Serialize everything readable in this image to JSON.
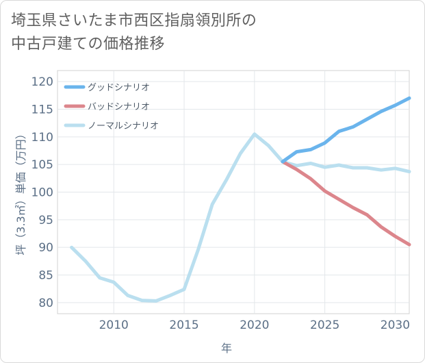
{
  "title": [
    "埼玉県さいたま市西区指扇領別所の",
    "中古戸建ての価格推移"
  ],
  "chart_data": {
    "type": "line",
    "title": "埼玉県さいたま市西区指扇領別所の中古戸建ての価格推移",
    "xlabel": "年",
    "ylabel": "坪（3.3㎡）単価（万円）",
    "xlim": [
      2006,
      2031
    ],
    "ylim": [
      78,
      122
    ],
    "x_ticks": [
      2010,
      2015,
      2020,
      2025,
      2030
    ],
    "y_ticks": [
      80,
      85,
      90,
      95,
      100,
      105,
      110,
      115,
      120
    ],
    "grid": true,
    "legend_position": "top-left",
    "series": [
      {
        "name": "グッドシナリオ",
        "color": "#6ab4ec",
        "x": [
          2022,
          2023,
          2024,
          2025,
          2026,
          2027,
          2028,
          2029,
          2030,
          2031
        ],
        "values": [
          105.5,
          107.3,
          107.7,
          108.9,
          111.0,
          111.8,
          113.2,
          114.6,
          115.7,
          117.0
        ]
      },
      {
        "name": "バッドシナリオ",
        "color": "#dc868c",
        "x": [
          2022,
          2023,
          2024,
          2025,
          2026,
          2027,
          2028,
          2029,
          2030,
          2031
        ],
        "values": [
          105.5,
          104.1,
          102.4,
          100.2,
          98.7,
          97.2,
          95.9,
          93.7,
          92.0,
          90.5
        ]
      },
      {
        "name": "ノーマルシナリオ",
        "color": "#badfef",
        "x": [
          2007,
          2008,
          2009,
          2010,
          2011,
          2012,
          2013,
          2014,
          2015,
          2016,
          2017,
          2018,
          2019,
          2020,
          2021,
          2022,
          2023,
          2024,
          2025,
          2026,
          2027,
          2028,
          2029,
          2030,
          2031
        ],
        "values": [
          90.0,
          87.5,
          84.5,
          83.7,
          81.3,
          80.4,
          80.3,
          81.3,
          82.4,
          89.6,
          97.8,
          102.2,
          107.0,
          110.5,
          108.4,
          105.5,
          104.8,
          105.2,
          104.5,
          104.9,
          104.4,
          104.4,
          104.0,
          104.3,
          103.7
        ]
      }
    ]
  }
}
